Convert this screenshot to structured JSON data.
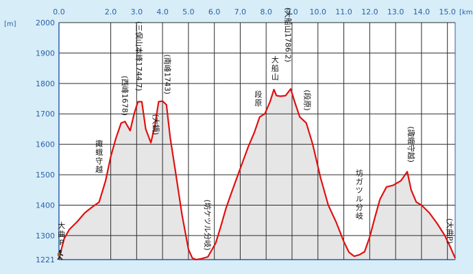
{
  "chart_data": {
    "type": "area",
    "xlabel": "[km]",
    "ylabel": "[m]",
    "xlim": [
      0,
      15.3
    ],
    "ylim": [
      1221,
      2000
    ],
    "x_ticks": [
      "0.0",
      "2.0",
      "3.0",
      "4.0",
      "5.0",
      "6.0",
      "7.0",
      "8.0",
      "9.0",
      "10.0",
      "11.0",
      "12.0",
      "13.0",
      "14.0",
      "15.0"
    ],
    "x_tick_values": [
      0,
      2,
      3,
      4,
      5,
      6,
      7,
      8,
      9,
      10,
      11,
      12,
      13,
      14,
      15
    ],
    "y_ticks": [
      "2000",
      "1900",
      "1800",
      "1700",
      "1600",
      "1500",
      "1400",
      "1300",
      "1221"
    ],
    "y_tick_values": [
      2000,
      1900,
      1800,
      1700,
      1600,
      1500,
      1400,
      1300,
      1221
    ],
    "grid": true,
    "colors": {
      "line": "#e01010",
      "fill": "#e6e6e6",
      "grid": "#2b2b2b",
      "background": "#d7edf7"
    },
    "series": [
      {
        "x": [
          0,
          0.08,
          0.2,
          0.4,
          0.7,
          1.0,
          1.3,
          1.55,
          1.8,
          2.0,
          2.2,
          2.4,
          2.55,
          2.75,
          2.9,
          3.05,
          3.2,
          3.35,
          3.55,
          3.7,
          3.85,
          4.0,
          4.15,
          4.3,
          4.5,
          4.75,
          5.0,
          5.15,
          5.3,
          5.5,
          5.75,
          6.05,
          6.25,
          6.45,
          6.7,
          7.0,
          7.3,
          7.55,
          7.75,
          7.95,
          8.15,
          8.3,
          8.4,
          8.55,
          8.75,
          8.95,
          9.1,
          9.3,
          9.55,
          9.8,
          10.1,
          10.4,
          10.7,
          11.0,
          11.2,
          11.4,
          11.6,
          11.8,
          12.0,
          12.2,
          12.4,
          12.65,
          12.9,
          13.2,
          13.45,
          13.6,
          13.8,
          14.0,
          14.3,
          14.6,
          14.9,
          15.1,
          15.3
        ],
        "y": [
          1221,
          1250,
          1290,
          1320,
          1345,
          1375,
          1395,
          1410,
          1480,
          1560,
          1620,
          1670,
          1675,
          1645,
          1700,
          1740,
          1740,
          1650,
          1605,
          1660,
          1740,
          1742,
          1730,
          1620,
          1510,
          1370,
          1255,
          1226,
          1221,
          1224,
          1230,
          1275,
          1330,
          1390,
          1450,
          1520,
          1590,
          1640,
          1690,
          1700,
          1740,
          1780,
          1760,
          1758,
          1760,
          1782,
          1740,
          1690,
          1670,
          1600,
          1490,
          1400,
          1345,
          1280,
          1245,
          1232,
          1237,
          1247,
          1295,
          1360,
          1420,
          1460,
          1465,
          1480,
          1510,
          1450,
          1410,
          1400,
          1375,
          1340,
          1300,
          1265,
          1226
        ]
      }
    ],
    "annotations": [
      {
        "text": "大曲P",
        "x": 0.1,
        "y": 1305,
        "orient": "vertical-upright"
      },
      {
        "text": "諏蛾守越",
        "x": 1.55,
        "y": 1560,
        "orient": "vertical-upright"
      },
      {
        "text": "(西峰1678)",
        "x": 2.55,
        "y": 1760,
        "orient": "vertical-rotated"
      },
      {
        "text": "(三俣山本峰1744.7)",
        "x": 3.1,
        "y": 1890,
        "orient": "vertical-rotated"
      },
      {
        "text": "(大鍋)",
        "x": 3.75,
        "y": 1665,
        "orient": "vertical-rotated"
      },
      {
        "text": "(南峰1743)",
        "x": 4.2,
        "y": 1830,
        "orient": "vertical-rotated"
      },
      {
        "text": "(坊ケツル分岐)",
        "x": 5.75,
        "y": 1335,
        "orient": "vertical-rotated"
      },
      {
        "text": "段原",
        "x": 7.7,
        "y": 1750,
        "orient": "vertical-upright"
      },
      {
        "text": "大船山",
        "x": 8.35,
        "y": 1850,
        "orient": "vertical-upright"
      },
      {
        "text": "(大船山1786.2)",
        "x": 8.85,
        "y": 1960,
        "orient": "vertical-rotated"
      },
      {
        "text": "(段原)",
        "x": 9.6,
        "y": 1745,
        "orient": "vertical-rotated"
      },
      {
        "text": "坊ガツル分岐",
        "x": 11.6,
        "y": 1435,
        "orient": "vertical-upright"
      },
      {
        "text": "(諏蛾守越)",
        "x": 13.6,
        "y": 1600,
        "orient": "vertical-rotated"
      },
      {
        "text": "(大曲P)",
        "x": 15.1,
        "y": 1315,
        "orient": "vertical-rotated"
      }
    ]
  }
}
